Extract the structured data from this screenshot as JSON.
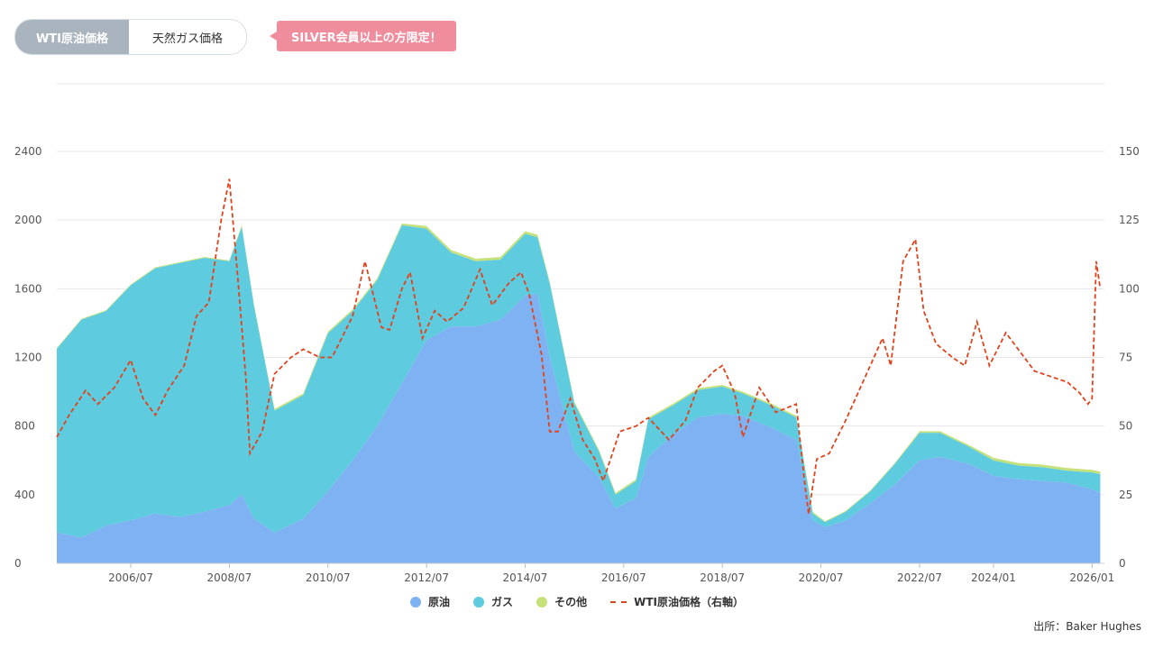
{
  "tabs": [
    {
      "label": "WTI原油価格",
      "active": true
    },
    {
      "label": "天然ガス価格",
      "active": false
    }
  ],
  "member_badge": "SILVER会員以上の方限定！",
  "source": "出所：Baker Hughes",
  "colors": {
    "oil": "#7fb2f2",
    "gas": "#5ecbde",
    "other": "#c6e17a",
    "wti": "#e0431c",
    "grid": "#e6e6e6"
  },
  "chart_data": {
    "type": "area",
    "title": "",
    "xlabel": "",
    "ylabel": "",
    "stacked": true,
    "x_ticks": [
      "2006/07",
      "2008/07",
      "2010/07",
      "2012/07",
      "2014/07",
      "2016/07",
      "2018/07",
      "2020/07",
      "2022/07",
      "2024/01",
      "2026/01"
    ],
    "ylim_left": [
      0,
      2400
    ],
    "yticks_left": [
      0,
      400,
      800,
      1200,
      1600,
      2000,
      2400
    ],
    "ylim_right": [
      0,
      150
    ],
    "yticks_right": [
      0,
      25,
      50,
      75,
      100,
      125,
      150
    ],
    "grid": true,
    "legend_position": "bottom",
    "x": [
      "2005/01",
      "2005/07",
      "2006/01",
      "2006/07",
      "2007/01",
      "2007/07",
      "2008/01",
      "2008/07",
      "2008/10",
      "2009/01",
      "2009/06",
      "2010/01",
      "2010/07",
      "2011/01",
      "2011/07",
      "2012/01",
      "2012/07",
      "2013/01",
      "2013/07",
      "2014/01",
      "2014/07",
      "2014/10",
      "2015/01",
      "2015/07",
      "2016/01",
      "2016/05",
      "2016/10",
      "2017/01",
      "2017/07",
      "2018/01",
      "2018/07",
      "2018/12",
      "2019/07",
      "2020/01",
      "2020/05",
      "2020/08",
      "2021/01",
      "2021/07",
      "2022/01",
      "2022/07",
      "2022/12",
      "2023/07",
      "2024/01",
      "2024/07",
      "2025/01",
      "2025/07",
      "2026/01",
      "2026/03"
    ],
    "series": [
      {
        "name": "原油",
        "axis": "left",
        "values": [
          180,
          150,
          220,
          250,
          290,
          270,
          300,
          340,
          400,
          260,
          180,
          260,
          420,
          600,
          800,
          1050,
          1300,
          1380,
          1380,
          1420,
          1560,
          1570,
          1200,
          650,
          500,
          320,
          380,
          620,
          750,
          850,
          870,
          860,
          790,
          720,
          250,
          210,
          250,
          350,
          460,
          600,
          620,
          580,
          510,
          490,
          480,
          470,
          430,
          410
        ]
      },
      {
        "name": "ガス",
        "axis": "left",
        "values": [
          1070,
          1270,
          1250,
          1370,
          1430,
          1480,
          1480,
          1420,
          1560,
          1240,
          710,
          720,
          920,
          870,
          850,
          920,
          650,
          430,
          380,
          350,
          360,
          330,
          430,
          280,
          150,
          80,
          100,
          220,
          170,
          160,
          160,
          130,
          130,
          130,
          40,
          30,
          50,
          70,
          120,
          160,
          140,
          100,
          90,
          80,
          80,
          70,
          100,
          110
        ]
      },
      {
        "name": "その他",
        "axis": "left",
        "values": [
          5,
          5,
          5,
          5,
          5,
          5,
          5,
          5,
          10,
          10,
          10,
          10,
          10,
          10,
          10,
          10,
          15,
          15,
          15,
          15,
          15,
          15,
          10,
          10,
          10,
          10,
          10,
          10,
          10,
          10,
          10,
          10,
          10,
          10,
          10,
          5,
          5,
          5,
          5,
          10,
          10,
          10,
          15,
          15,
          15,
          15,
          15,
          15
        ]
      }
    ],
    "wti_series": {
      "name": "WTI原油価格（右軸）",
      "axis": "right",
      "x": [
        "2005/01",
        "2005/04",
        "2005/08",
        "2005/11",
        "2006/03",
        "2006/07",
        "2006/10",
        "2007/01",
        "2007/04",
        "2007/08",
        "2007/11",
        "2008/02",
        "2008/05",
        "2008/07",
        "2008/09",
        "2008/11",
        "2008/12",
        "2009/03",
        "2009/06",
        "2009/10",
        "2010/01",
        "2010/05",
        "2010/08",
        "2011/01",
        "2011/04",
        "2011/08",
        "2011/10",
        "2012/01",
        "2012/03",
        "2012/06",
        "2012/09",
        "2012/12",
        "2013/04",
        "2013/08",
        "2013/11",
        "2014/03",
        "2014/06",
        "2014/08",
        "2014/11",
        "2015/01",
        "2015/03",
        "2015/06",
        "2015/09",
        "2015/12",
        "2016/02",
        "2016/06",
        "2016/10",
        "2017/01",
        "2017/06",
        "2017/10",
        "2018/01",
        "2018/05",
        "2018/07",
        "2018/10",
        "2018/12",
        "2019/04",
        "2019/08",
        "2020/01",
        "2020/03",
        "2020/04",
        "2020/06",
        "2020/09",
        "2021/01",
        "2021/04",
        "2021/07",
        "2021/10",
        "2021/12",
        "2022/03",
        "2022/06",
        "2022/08",
        "2022/11",
        "2023/03",
        "2023/06",
        "2023/09",
        "2023/12",
        "2024/04",
        "2024/08",
        "2024/11",
        "2025/03",
        "2025/07",
        "2025/10",
        "2025/12",
        "2026/01",
        "2026/02",
        "2026/03"
      ],
      "values": [
        46,
        54,
        63,
        58,
        64,
        74,
        60,
        54,
        63,
        72,
        90,
        95,
        125,
        140,
        105,
        68,
        40,
        48,
        69,
        75,
        78,
        75,
        75,
        90,
        110,
        86,
        85,
        100,
        106,
        82,
        92,
        88,
        93,
        107,
        94,
        102,
        106,
        98,
        76,
        48,
        48,
        60,
        45,
        38,
        30,
        48,
        50,
        53,
        45,
        52,
        64,
        70,
        72,
        62,
        46,
        64,
        55,
        58,
        30,
        18,
        38,
        40,
        52,
        62,
        72,
        82,
        72,
        110,
        118,
        92,
        80,
        75,
        72,
        88,
        72,
        84,
        76,
        70,
        68,
        66,
        62,
        58,
        60,
        110,
        100
      ]
    }
  }
}
